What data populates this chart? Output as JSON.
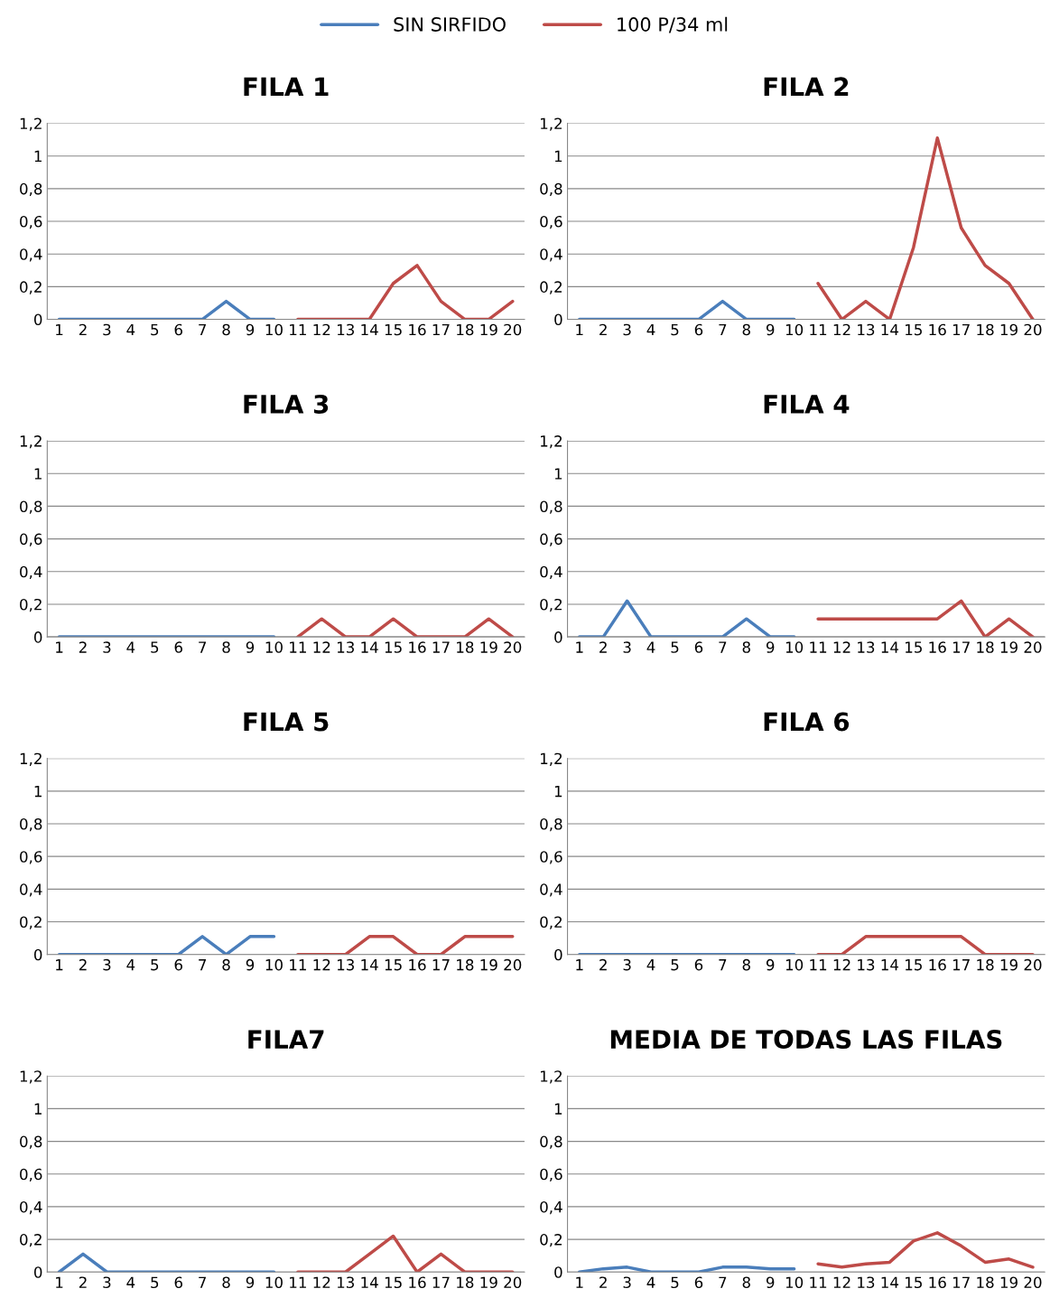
{
  "chart_data": [
    {
      "type": "line",
      "title": "FILA 1",
      "legend": "top",
      "grid": "y",
      "categories": [
        "1",
        "2",
        "3",
        "4",
        "5",
        "6",
        "7",
        "8",
        "9",
        "10",
        "11",
        "12",
        "13",
        "14",
        "15",
        "16",
        "17",
        "18",
        "19",
        "20"
      ],
      "ylim": [
        0,
        1.2
      ],
      "yticks": [
        0,
        {
          "value": 0.2,
          "label": "0,2"
        },
        {
          "value": 0.4,
          "label": "0,4"
        },
        {
          "value": 0.6,
          "label": "0,6"
        },
        {
          "value": 0.8,
          "label": "0,8"
        },
        1,
        {
          "value": 1.2,
          "label": "1,2"
        }
      ],
      "series": [
        {
          "name": "SIN SIRFIDO",
          "color": "#4a7ebb",
          "values": [
            0,
            0,
            0,
            0,
            0,
            0,
            0,
            0.11,
            0,
            0,
            null,
            null,
            null,
            null,
            null,
            null,
            null,
            null,
            null,
            null
          ]
        },
        {
          "name": "100 P/34 ml",
          "color": "#be4b48",
          "values": [
            null,
            null,
            null,
            null,
            null,
            null,
            null,
            null,
            null,
            null,
            0,
            0,
            0,
            0,
            0.22,
            0.33,
            0.11,
            0,
            0,
            0.11
          ]
        }
      ]
    },
    {
      "type": "line",
      "title": "FILA 2",
      "grid": "y",
      "categories": [
        "1",
        "2",
        "3",
        "4",
        "5",
        "6",
        "7",
        "8",
        "9",
        "10",
        "11",
        "12",
        "13",
        "14",
        "15",
        "16",
        "17",
        "18",
        "19",
        "20"
      ],
      "ylim": [
        0,
        1.2
      ],
      "yticks": [
        0,
        {
          "value": 0.2,
          "label": "0,2"
        },
        {
          "value": 0.4,
          "label": "0,4"
        },
        {
          "value": 0.6,
          "label": "0,6"
        },
        {
          "value": 0.8,
          "label": "0,8"
        },
        1,
        {
          "value": 1.2,
          "label": "1,2"
        }
      ],
      "series": [
        {
          "color": "#4a7ebb",
          "values": [
            0,
            0,
            0,
            0,
            0,
            0,
            0.11,
            0,
            0,
            0,
            null,
            null,
            null,
            null,
            null,
            null,
            null,
            null,
            null,
            null
          ]
        },
        {
          "color": "#be4b48",
          "values": [
            null,
            null,
            null,
            null,
            null,
            null,
            null,
            null,
            null,
            null,
            0.22,
            0,
            0.11,
            0,
            0.44,
            1.11,
            0.56,
            0.33,
            0.22,
            0
          ]
        }
      ]
    },
    {
      "type": "line",
      "title": "FILA 3",
      "grid": "y",
      "categories": [
        "1",
        "2",
        "3",
        "4",
        "5",
        "6",
        "7",
        "8",
        "9",
        "10",
        "11",
        "12",
        "13",
        "14",
        "15",
        "16",
        "17",
        "18",
        "19",
        "20"
      ],
      "ylim": [
        0,
        1.2
      ],
      "yticks": [
        0,
        {
          "value": 0.2,
          "label": "0,2"
        },
        {
          "value": 0.4,
          "label": "0,4"
        },
        {
          "value": 0.6,
          "label": "0,6"
        },
        {
          "value": 0.8,
          "label": "0,8"
        },
        1,
        {
          "value": 1.2,
          "label": "1,2"
        }
      ],
      "series": [
        {
          "color": "#4a7ebb",
          "values": [
            0,
            0,
            0,
            0,
            0,
            0,
            0,
            0,
            0,
            0,
            null,
            null,
            null,
            null,
            null,
            null,
            null,
            null,
            null,
            null
          ]
        },
        {
          "color": "#be4b48",
          "values": [
            null,
            null,
            null,
            null,
            null,
            null,
            null,
            null,
            null,
            null,
            0,
            0.11,
            0,
            0,
            0.11,
            0,
            0,
            0,
            0.11,
            0
          ]
        }
      ]
    },
    {
      "type": "line",
      "title": "FILA 4",
      "grid": "y",
      "categories": [
        "1",
        "2",
        "3",
        "4",
        "5",
        "6",
        "7",
        "8",
        "9",
        "10",
        "11",
        "12",
        "13",
        "14",
        "15",
        "16",
        "17",
        "18",
        "19",
        "20"
      ],
      "ylim": [
        0,
        1.2
      ],
      "yticks": [
        0,
        {
          "value": 0.2,
          "label": "0,2"
        },
        {
          "value": 0.4,
          "label": "0,4"
        },
        {
          "value": 0.6,
          "label": "0,6"
        },
        {
          "value": 0.8,
          "label": "0,8"
        },
        1,
        {
          "value": 1.2,
          "label": "1,2"
        }
      ],
      "series": [
        {
          "color": "#4a7ebb",
          "values": [
            0,
            0,
            0.22,
            0,
            0,
            0,
            0,
            0.11,
            0,
            0,
            null,
            null,
            null,
            null,
            null,
            null,
            null,
            null,
            null,
            null
          ]
        },
        {
          "color": "#be4b48",
          "values": [
            null,
            null,
            null,
            null,
            null,
            null,
            null,
            null,
            null,
            null,
            0.11,
            0.11,
            0.11,
            0.11,
            0.11,
            0.11,
            0.22,
            0,
            0.11,
            0
          ]
        }
      ]
    },
    {
      "type": "line",
      "title": "FILA 5",
      "grid": "y",
      "categories": [
        "1",
        "2",
        "3",
        "4",
        "5",
        "6",
        "7",
        "8",
        "9",
        "10",
        "11",
        "12",
        "13",
        "14",
        "15",
        "16",
        "17",
        "18",
        "19",
        "20"
      ],
      "ylim": [
        0,
        1.2
      ],
      "yticks": [
        0,
        {
          "value": 0.2,
          "label": "0,2"
        },
        {
          "value": 0.4,
          "label": "0,4"
        },
        {
          "value": 0.6,
          "label": "0,6"
        },
        {
          "value": 0.8,
          "label": "0,8"
        },
        1,
        {
          "value": 1.2,
          "label": "1,2"
        }
      ],
      "series": [
        {
          "color": "#4a7ebb",
          "values": [
            0,
            0,
            0,
            0,
            0,
            0,
            0.11,
            0,
            0.11,
            0.11,
            null,
            null,
            null,
            null,
            null,
            null,
            null,
            null,
            null,
            null
          ]
        },
        {
          "color": "#be4b48",
          "values": [
            null,
            null,
            null,
            null,
            null,
            null,
            null,
            null,
            null,
            null,
            0,
            0,
            0,
            0.11,
            0.11,
            0,
            0,
            0.11,
            0.11,
            0.11
          ]
        }
      ]
    },
    {
      "type": "line",
      "title": "FILA 6",
      "grid": "y",
      "categories": [
        "1",
        "2",
        "3",
        "4",
        "5",
        "6",
        "7",
        "8",
        "9",
        "10",
        "11",
        "12",
        "13",
        "14",
        "15",
        "16",
        "17",
        "18",
        "19",
        "20"
      ],
      "ylim": [
        0,
        1.2
      ],
      "yticks": [
        0,
        {
          "value": 0.2,
          "label": "0,2"
        },
        {
          "value": 0.4,
          "label": "0,4"
        },
        {
          "value": 0.6,
          "label": "0,6"
        },
        {
          "value": 0.8,
          "label": "0,8"
        },
        1,
        {
          "value": 1.2,
          "label": "1,2"
        }
      ],
      "series": [
        {
          "color": "#4a7ebb",
          "values": [
            0,
            0,
            0,
            0,
            0,
            0,
            0,
            0,
            0,
            0,
            null,
            null,
            null,
            null,
            null,
            null,
            null,
            null,
            null,
            null
          ]
        },
        {
          "color": "#be4b48",
          "values": [
            null,
            null,
            null,
            null,
            null,
            null,
            null,
            null,
            null,
            null,
            0,
            0,
            0.11,
            0.11,
            0.11,
            0.11,
            0.11,
            0,
            0,
            0
          ]
        }
      ]
    },
    {
      "type": "line",
      "title": "FILA7",
      "grid": "y",
      "categories": [
        "1",
        "2",
        "3",
        "4",
        "5",
        "6",
        "7",
        "8",
        "9",
        "10",
        "11",
        "12",
        "13",
        "14",
        "15",
        "16",
        "17",
        "18",
        "19",
        "20"
      ],
      "ylim": [
        0,
        1.2
      ],
      "yticks": [
        0,
        {
          "value": 0.2,
          "label": "0,2"
        },
        {
          "value": 0.4,
          "label": "0,4"
        },
        {
          "value": 0.6,
          "label": "0,6"
        },
        {
          "value": 0.8,
          "label": "0,8"
        },
        1,
        {
          "value": 1.2,
          "label": "1,2"
        }
      ],
      "series": [
        {
          "color": "#4a7ebb",
          "values": [
            0,
            0.11,
            0,
            0,
            0,
            0,
            0,
            0,
            0,
            0,
            null,
            null,
            null,
            null,
            null,
            null,
            null,
            null,
            null,
            null
          ]
        },
        {
          "color": "#be4b48",
          "values": [
            null,
            null,
            null,
            null,
            null,
            null,
            null,
            null,
            null,
            null,
            0,
            0,
            0,
            0.11,
            0.22,
            0,
            0.11,
            0,
            0,
            0
          ]
        }
      ]
    },
    {
      "type": "line",
      "title": "MEDIA DE TODAS LAS FILAS",
      "grid": "y",
      "categories": [
        "1",
        "2",
        "3",
        "4",
        "5",
        "6",
        "7",
        "8",
        "9",
        "10",
        "11",
        "12",
        "13",
        "14",
        "15",
        "16",
        "17",
        "18",
        "19",
        "20"
      ],
      "ylim": [
        0,
        1.2
      ],
      "yticks": [
        0,
        {
          "value": 0.2,
          "label": "0,2"
        },
        {
          "value": 0.4,
          "label": "0,4"
        },
        {
          "value": 0.6,
          "label": "0,6"
        },
        {
          "value": 0.8,
          "label": "0,8"
        },
        1,
        {
          "value": 1.2,
          "label": "1,2"
        }
      ],
      "series": [
        {
          "color": "#4a7ebb",
          "values": [
            0,
            0.02,
            0.03,
            0,
            0,
            0,
            0.03,
            0.03,
            0.02,
            0.02,
            null,
            null,
            null,
            null,
            null,
            null,
            null,
            null,
            null,
            null
          ]
        },
        {
          "color": "#be4b48",
          "values": [
            null,
            null,
            null,
            null,
            null,
            null,
            null,
            null,
            null,
            null,
            0.05,
            0.03,
            0.05,
            0.06,
            0.19,
            0.24,
            0.16,
            0.06,
            0.08,
            0.03
          ]
        }
      ]
    }
  ]
}
